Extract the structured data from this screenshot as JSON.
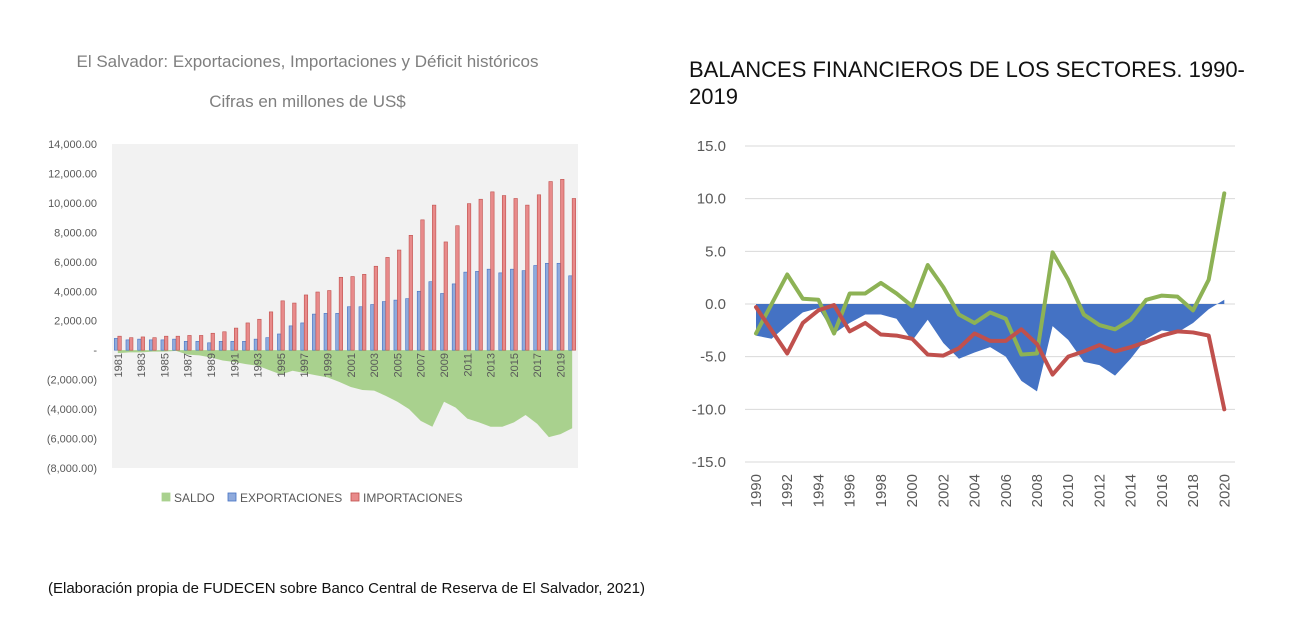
{
  "footer": {
    "source": "(Elaboración propia de FUDECEN sobre Banco Central de Reserva de El Salvador, 2021)"
  },
  "chart_data": [
    {
      "type": "bar",
      "title": "El Salvador: Exportaciones, Importaciones y Déficit históricos",
      "subtitle": "Cifras en millones de US$",
      "xlabel": "",
      "ylabel": "",
      "ylim": [
        -8000,
        14000
      ],
      "y_ticks": [
        14000,
        12000,
        10000,
        8000,
        6000,
        4000,
        2000,
        0,
        -2000,
        -4000,
        -6000,
        -8000
      ],
      "y_tick_labels": [
        "14,000.00",
        "12,000.00",
        "10,000.00",
        "8,000.00",
        "6,000.00",
        "4,000.00",
        "2,000.00",
        "-",
        "(2,000.00)",
        "(4,000.00)",
        "(6,000.00)",
        "(8,000.00)"
      ],
      "categories": [
        1981,
        1982,
        1983,
        1984,
        1985,
        1986,
        1987,
        1988,
        1989,
        1990,
        1991,
        1992,
        1993,
        1994,
        1995,
        1996,
        1997,
        1998,
        1999,
        2000,
        2001,
        2002,
        2003,
        2004,
        2005,
        2006,
        2007,
        2008,
        2009,
        2010,
        2011,
        2012,
        2013,
        2014,
        2015,
        2016,
        2017,
        2018,
        2019,
        2020
      ],
      "x_tick_labels": [
        "1981",
        "1983",
        "1985",
        "1987",
        "1989",
        "1991",
        "1993",
        "1995",
        "1997",
        "1999",
        "2001",
        "2003",
        "2005",
        "2007",
        "2009",
        "2011",
        "2013",
        "2015",
        "2017",
        "2019"
      ],
      "legend_position": "bottom",
      "grid": false,
      "series": [
        {
          "name": "SALDO",
          "kind": "area",
          "color": "#a9d18e",
          "values": [
            -200,
            -150,
            -150,
            -100,
            -100,
            -50,
            -300,
            -350,
            -500,
            -700,
            -800,
            -950,
            -1050,
            -1350,
            -1650,
            -1400,
            -1550,
            -1700,
            -1850,
            -2150,
            -2500,
            -2700,
            -2750,
            -3100,
            -3500,
            -4000,
            -4800,
            -5200,
            -3500,
            -3900,
            -4650,
            -4900,
            -5200,
            -5200,
            -4900,
            -4400,
            -5000,
            -5900,
            -5700,
            -5300
          ]
        },
        {
          "name": "EXPORTACIONES",
          "kind": "bar",
          "color": "#8faadc",
          "values": [
            800,
            700,
            750,
            700,
            700,
            750,
            600,
            600,
            500,
            600,
            600,
            600,
            750,
            850,
            1100,
            1650,
            1850,
            2450,
            2500,
            2500,
            2950,
            2950,
            3100,
            3300,
            3400,
            3500,
            4000,
            4650,
            3850,
            4500,
            5300,
            5350,
            5500,
            5250,
            5500,
            5400,
            5750,
            5900,
            5900,
            5050
          ]
        },
        {
          "name": "IMPORTACIONES",
          "kind": "bar",
          "color": "#e88a8a",
          "values": [
            950,
            850,
            900,
            850,
            950,
            950,
            1000,
            1000,
            1150,
            1250,
            1500,
            1850,
            2100,
            2600,
            3350,
            3200,
            3750,
            3950,
            4050,
            4950,
            5000,
            5150,
            5700,
            6300,
            6800,
            7800,
            8850,
            9850,
            7350,
            8450,
            9950,
            10250,
            10750,
            10500,
            10300,
            9850,
            10550,
            11450,
            11600,
            10300
          ]
        }
      ]
    },
    {
      "type": "area",
      "title": "BALANCES FINANCIEROS DE LOS SECTORES. 1990-2019",
      "xlabel": "",
      "ylabel": "",
      "ylim": [
        -15,
        15
      ],
      "y_ticks": [
        15,
        10,
        5,
        0,
        -5,
        -10,
        -15
      ],
      "y_tick_labels": [
        "15.0",
        "10.0",
        "5.0",
        "0.0",
        "-5.0",
        "-10.0",
        "-15.0"
      ],
      "x": [
        1990,
        1991,
        1992,
        1993,
        1994,
        1995,
        1996,
        1997,
        1998,
        1999,
        2000,
        2001,
        2002,
        2003,
        2004,
        2005,
        2006,
        2007,
        2008,
        2009,
        2010,
        2011,
        2012,
        2013,
        2014,
        2015,
        2016,
        2017,
        2018,
        2019,
        2020
      ],
      "x_tick_labels": [
        "1990",
        "1992",
        "1994",
        "1996",
        "1998",
        "2000",
        "2002",
        "2004",
        "2006",
        "2008",
        "2010",
        "2012",
        "2014",
        "2016",
        "2018",
        "2020"
      ],
      "grid": true,
      "series": [
        {
          "kind": "area",
          "color": "#4472c4",
          "values": [
            -3,
            -3.3,
            -2,
            -0.8,
            -0.4,
            -2.8,
            -1.8,
            -1,
            -1,
            -1.4,
            -3.5,
            -1.5,
            -3.7,
            -5.2,
            -4.6,
            -4.1,
            -5,
            -7.3,
            -8.3,
            -2.1,
            -3.4,
            -5.5,
            -5.8,
            -6.8,
            -5.2,
            -3.3,
            -2.5,
            -2.7,
            -1.8,
            -0.5,
            0.4
          ]
        },
        {
          "kind": "line",
          "color": "#8db255",
          "values": [
            -2.8,
            0,
            2.8,
            0.5,
            0.4,
            -2.8,
            1,
            1,
            2,
            1,
            -0.2,
            3.7,
            1.6,
            -1,
            -1.8,
            -0.8,
            -1.4,
            -4.8,
            -4.7,
            4.9,
            2.3,
            -1,
            -2,
            -2.4,
            -1.5,
            0.4,
            0.8,
            0.7,
            -0.6,
            2.3,
            10.5
          ]
        },
        {
          "kind": "line",
          "color": "#c0504d",
          "values": [
            -0.3,
            -2.5,
            -4.7,
            -1.8,
            -0.6,
            -0.1,
            -2.6,
            -1.8,
            -2.9,
            -3,
            -3.3,
            -4.8,
            -4.9,
            -4.2,
            -2.8,
            -3.5,
            -3.5,
            -2.4,
            -3.8,
            -6.7,
            -5,
            -4.5,
            -3.9,
            -4.5,
            -4.1,
            -3.6,
            -3,
            -2.6,
            -2.7,
            -3,
            -10
          ]
        }
      ]
    }
  ]
}
